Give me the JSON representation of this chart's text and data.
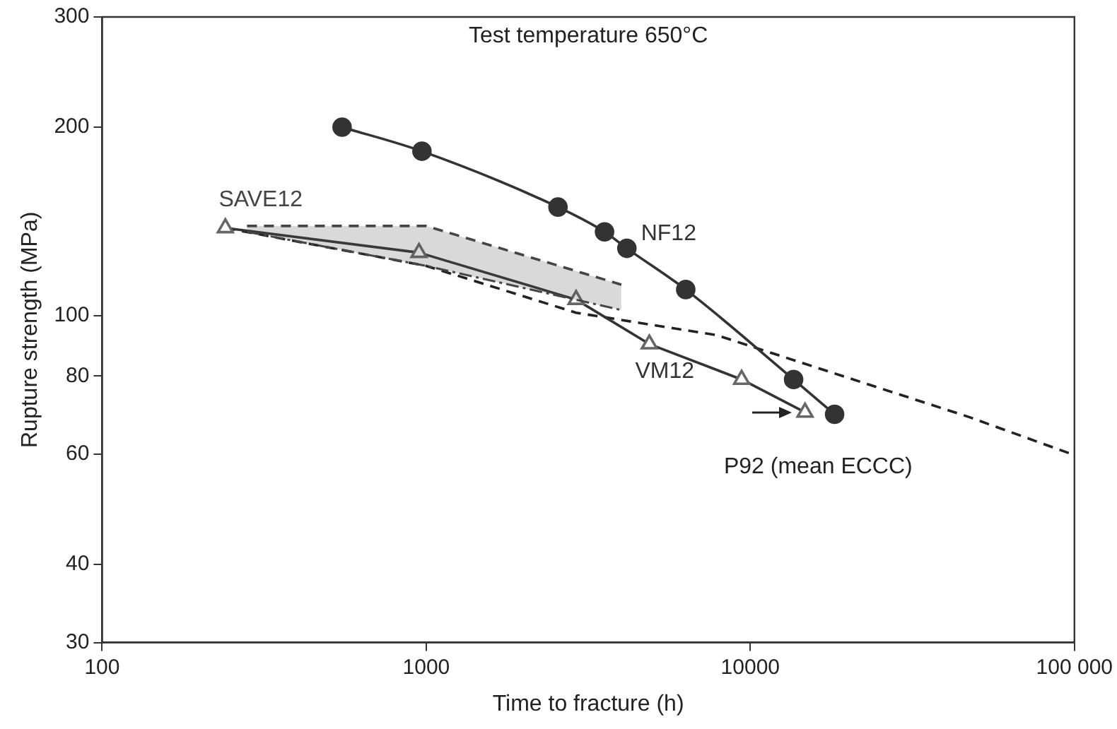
{
  "chart_data": {
    "type": "line",
    "xlabel": "Time to fracture (h)",
    "ylabel": "Rupture strength (MPa)",
    "log": "xy",
    "xlim": [
      100,
      100000
    ],
    "xticks": [
      100,
      1000,
      10000,
      {
        "value": 100000,
        "label": "100 000"
      }
    ],
    "ylim": [
      30,
      300
    ],
    "yticks": [
      30,
      40,
      60,
      80,
      100,
      200,
      300
    ],
    "grid": false,
    "legend": false,
    "annotations": [
      "Test temperature 650°C"
    ],
    "series": [
      {
        "name": "NF12",
        "color": "#333333",
        "marker": "circle",
        "line_style": "solid",
        "x": [
          550,
          970,
          2550,
          3550,
          4160,
          6320,
          13600,
          18200
        ],
        "values": [
          200,
          183,
          149,
          136,
          128,
          110,
          79,
          69.5
        ]
      },
      {
        "name": "SAVE12",
        "color": "#444444",
        "marker": "none",
        "line_style": "dashed",
        "x": [
          280,
          1000,
          4000
        ],
        "values": [
          136,
          120,
          102
        ],
        "lower": [
          136,
          120,
          102
        ],
        "upper": [
          139,
          139,
          112
        ]
      },
      {
        "color": "#444444",
        "marker": "none",
        "line_style": "dashed",
        "x": [
          280,
          1000,
          4000
        ],
        "values": [
          139,
          139,
          112
        ]
      },
      {
        "name": "VM12",
        "color": "#333333",
        "marker": "triangle",
        "line_style": "solid",
        "x": [
          240,
          950,
          2900,
          4880,
          9400,
          14750
        ],
        "values": [
          138,
          126,
          106,
          90,
          79,
          70
        ]
      },
      {
        "name": "P92 (mean ECCC)",
        "color": "#222222",
        "marker": "none",
        "line_style": "dashed",
        "x": [
          240,
          1000,
          2900,
          7870,
          47300,
          100000
        ],
        "values": [
          138,
          120,
          101,
          93,
          68.8,
          59.8
        ]
      }
    ]
  }
}
